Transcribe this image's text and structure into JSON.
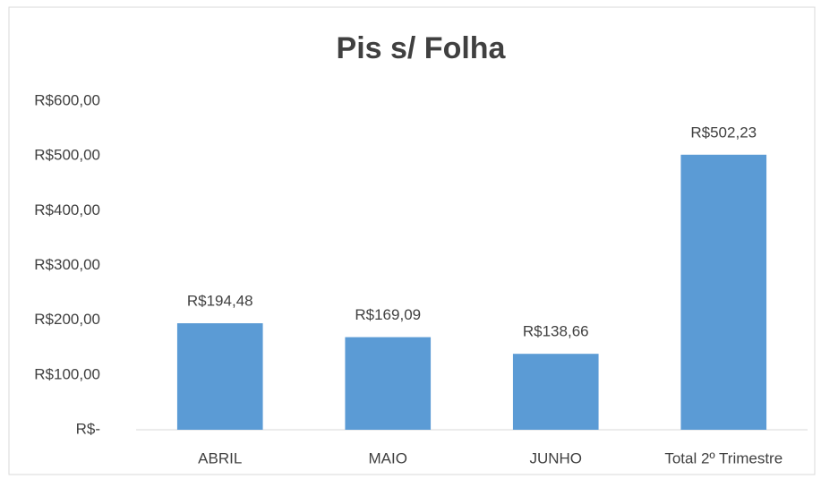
{
  "chart_data": {
    "type": "bar",
    "title": "Pis s/ Folha",
    "categories": [
      "ABRIL",
      "MAIO",
      "JUNHO",
      "Total 2º Trimestre"
    ],
    "values": [
      194.48,
      169.09,
      138.66,
      502.23
    ],
    "value_labels": [
      "R$194,48",
      "R$169,09",
      "R$138,66",
      "R$502,23"
    ],
    "color": "#5b9bd5",
    "ylim": [
      0,
      600
    ],
    "yticks": [
      {
        "value": 0,
        "label": "R$-"
      },
      {
        "value": 100,
        "label": "R$100,00"
      },
      {
        "value": 200,
        "label": "R$200,00"
      },
      {
        "value": 300,
        "label": "R$300,00"
      },
      {
        "value": 400,
        "label": "R$400,00"
      },
      {
        "value": 500,
        "label": "R$500,00"
      },
      {
        "value": 600,
        "label": "R$600,00"
      }
    ],
    "grid": false
  }
}
